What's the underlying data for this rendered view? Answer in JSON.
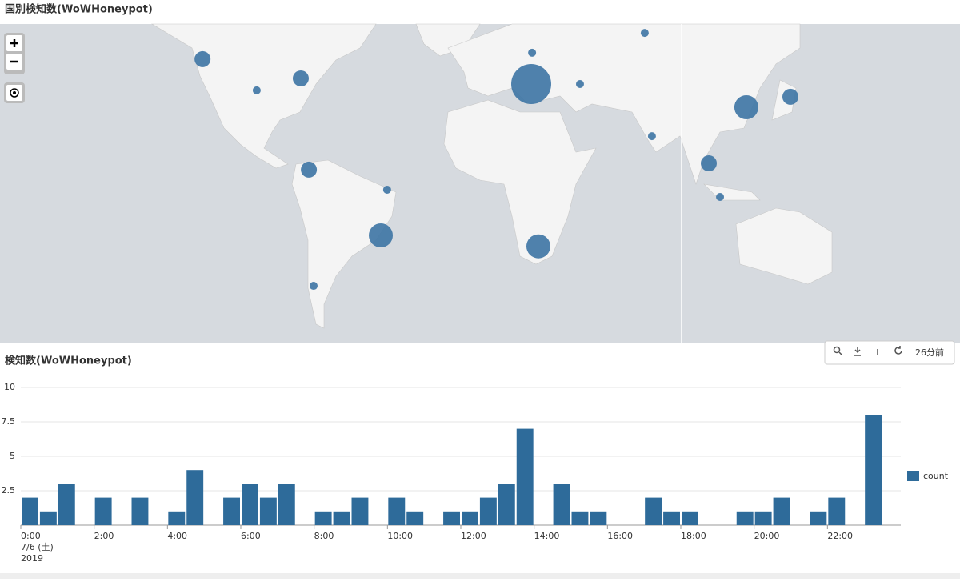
{
  "toolbar": {
    "updated": "26分前"
  },
  "chart_data": [
    {
      "type": "map",
      "title": "国別検知数(WoWHoneypot)",
      "color": "#3d74a4",
      "lon": [
        -122,
        -97.9,
        -78.3,
        -74.7,
        -39.9,
        -42.7,
        -72.6,
        24.6,
        24.2,
        74.7,
        45.9,
        77.9,
        119.9,
        139.5,
        103.2,
        108.2,
        27.4
      ],
      "lat": [
        47.5,
        37.3,
        41.4,
        5.0,
        -3.9,
        -23.5,
        -42.2,
        49.4,
        39.5,
        54.8,
        39.5,
        19.5,
        31.1,
        35.0,
        7.8,
        -7.1,
        -27.9
      ],
      "values": [
        4,
        1,
        4,
        4,
        1,
        9,
        1,
        1,
        25,
        1,
        1,
        1,
        9,
        4,
        4,
        1,
        9
      ]
    },
    {
      "type": "histogram",
      "title": "検知数(WoWHoneypot)",
      "bins": [
        0,
        0.5,
        1,
        1.5,
        2,
        2.5,
        3,
        3.5,
        4,
        4.5,
        5,
        5.5,
        6,
        6.5,
        7,
        7.5,
        8,
        8.5,
        9,
        9.5,
        10,
        10.5,
        11,
        11.5,
        12,
        12.5,
        13,
        13.5,
        14,
        14.5,
        15,
        15.5,
        16,
        16.5,
        17,
        17.5,
        18,
        18.5,
        19,
        19.5,
        20,
        20.5,
        21,
        21.5,
        22,
        22.5,
        23,
        23.5,
        24
      ],
      "series": [
        {
          "name": "count",
          "color": "#2e6b9a",
          "values": [
            2,
            1,
            3,
            0,
            2,
            0,
            2,
            0,
            1,
            4,
            0,
            2,
            3,
            2,
            3,
            0,
            1,
            1,
            2,
            0,
            2,
            1,
            0,
            1,
            1,
            2,
            3,
            7,
            0,
            3,
            1,
            1,
            0,
            0,
            2,
            1,
            1,
            0,
            0,
            1,
            1,
            2,
            0,
            1,
            2,
            0,
            8,
            0
          ]
        }
      ],
      "xlim": [
        0,
        24
      ],
      "xticks": [
        {
          "value": 0,
          "label": "0:00"
        },
        {
          "value": 2,
          "label": "2:00"
        },
        {
          "value": 4,
          "label": "4:00"
        },
        {
          "value": 6,
          "label": "6:00"
        },
        {
          "value": 8,
          "label": "8:00"
        },
        {
          "value": 10,
          "label": "10:00"
        },
        {
          "value": 12,
          "label": "12:00"
        },
        {
          "value": 14,
          "label": "14:00"
        },
        {
          "value": 16,
          "label": "16:00"
        },
        {
          "value": 18,
          "label": "18:00"
        },
        {
          "value": 20,
          "label": "20:00"
        },
        {
          "value": 22,
          "label": "22:00"
        }
      ],
      "date_label": [
        "7/6 (土)",
        "2019"
      ],
      "ylim": [
        0,
        10
      ],
      "yticks": [
        2.5,
        5,
        7.5,
        10
      ],
      "grid": true
    }
  ]
}
